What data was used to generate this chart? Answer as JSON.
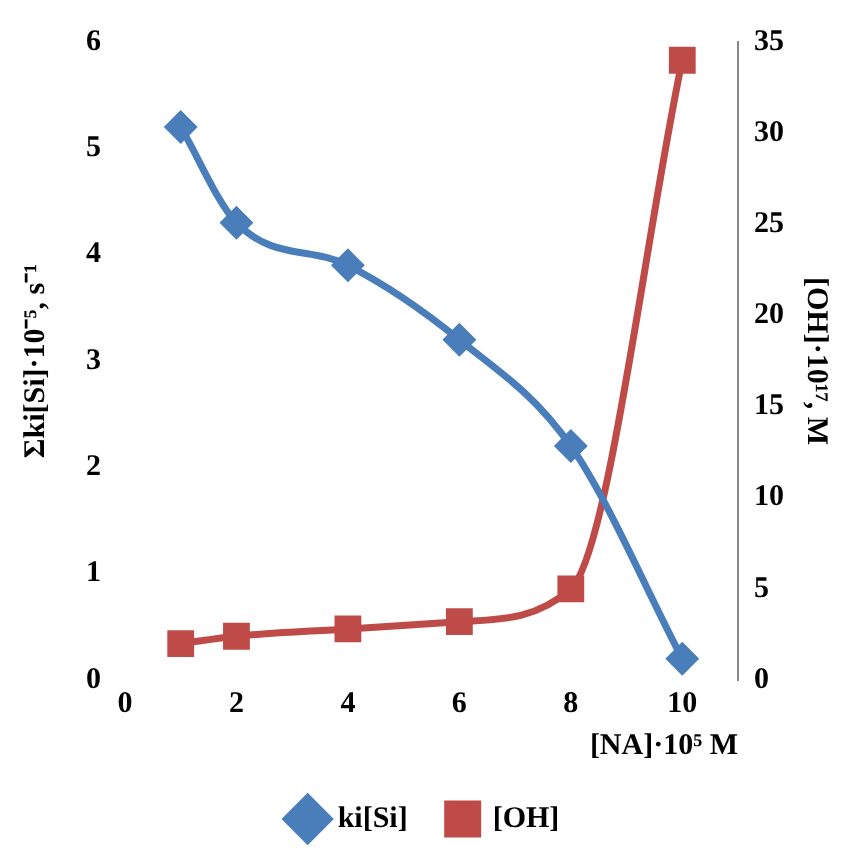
{
  "chart_data": {
    "type": "line",
    "xlabel": "[NA]·10⁵ M",
    "ylabel": "Σki[Si]·10⁻⁵, s⁻¹",
    "y2label": "[OH]·10¹⁷, M",
    "xlim": [
      0,
      11
    ],
    "xticks": [
      0,
      2,
      4,
      6,
      8,
      10
    ],
    "ylim": [
      0,
      6
    ],
    "yticks": [
      0,
      1,
      2,
      3,
      4,
      5,
      6
    ],
    "y2lim": [
      0,
      35
    ],
    "y2ticks": [
      0,
      5,
      10,
      15,
      20,
      25,
      30,
      35
    ],
    "grid": false,
    "legend": "bottom",
    "series": [
      {
        "name": "ki[Si]",
        "color": "#4a7ebb",
        "marker": "diamond",
        "x": [
          1,
          2,
          4,
          6,
          8,
          10
        ],
        "values": [
          5.2,
          4.3,
          3.9,
          3.2,
          2.2,
          0.2
        ]
      },
      {
        "name": "[OH]",
        "color": "#be4b48",
        "marker": "square",
        "axis": "y2",
        "x": [
          1,
          2,
          4,
          6,
          8,
          10
        ],
        "values": [
          2.0,
          2.4,
          2.8,
          3.2,
          5.0,
          34
        ]
      }
    ]
  }
}
